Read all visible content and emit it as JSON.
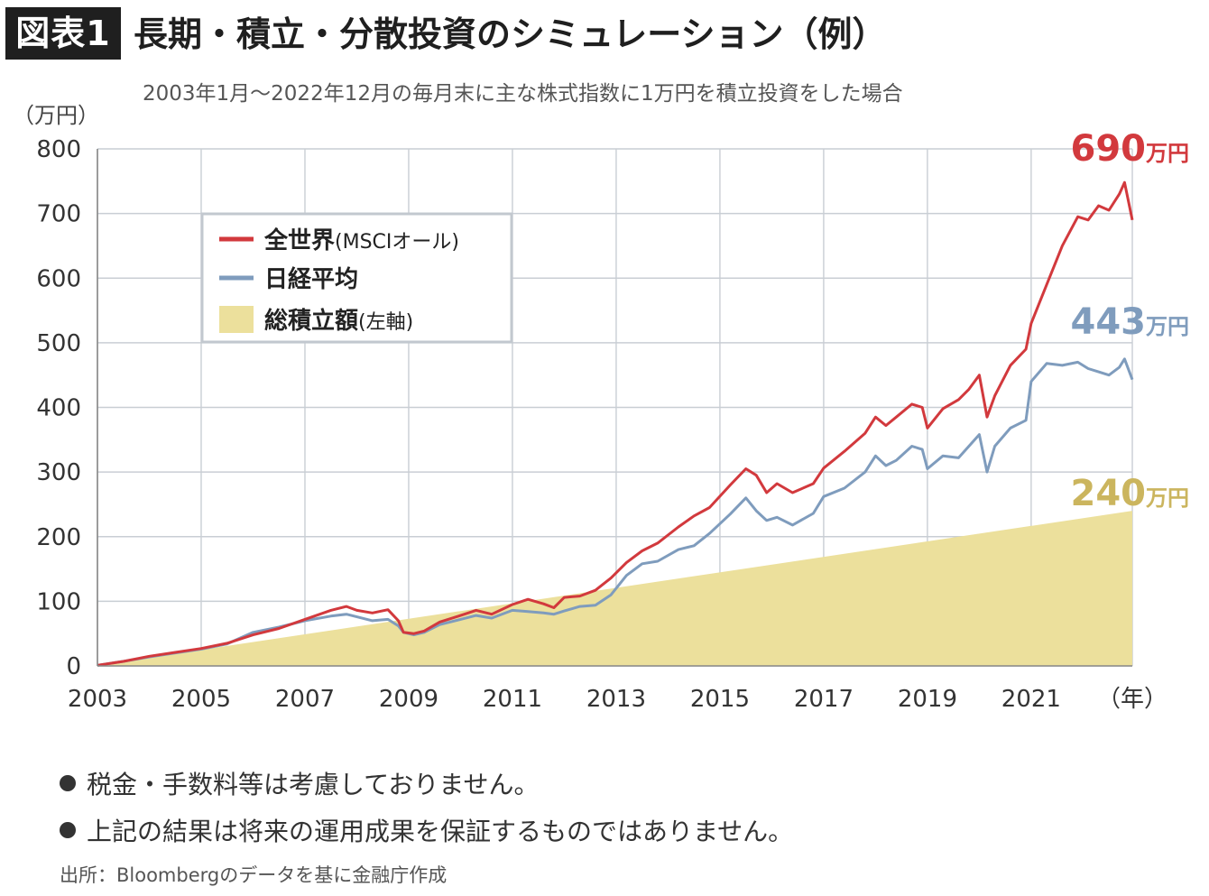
{
  "header": {
    "badge": "図表1",
    "title": "長期・積立・分散投資のシミュレーション（例）",
    "subtitle": "2003年1月〜2022年12月の毎月末に主な株式指数に1万円を積立投資をした場合"
  },
  "colors": {
    "world": "#d2393d",
    "nikkei": "#7f9cbd",
    "total": "#ece09c",
    "total_label": "#cbb55e",
    "grid": "#c9ced4",
    "axis_text": "#333333"
  },
  "chart_data": {
    "type": "line",
    "ylabel": "（万円）",
    "xlabel": "（年）",
    "ylim": [
      0,
      800
    ],
    "yticks": [
      0,
      100,
      200,
      300,
      400,
      500,
      600,
      700,
      800
    ],
    "xlim": [
      2003.0,
      2022.95
    ],
    "xticks": [
      "2003",
      "2005",
      "2007",
      "2009",
      "2011",
      "2013",
      "2015",
      "2017",
      "2019",
      "2021"
    ],
    "grid": true,
    "legend_position": "top-left",
    "series": [
      {
        "key": "world",
        "name": "全世界",
        "name_suffix": "(MSCIオール)",
        "style": "line",
        "end_label": "690",
        "end_unit": "万円",
        "points": [
          [
            2003.0,
            1
          ],
          [
            2003.5,
            7
          ],
          [
            2004.0,
            15
          ],
          [
            2004.5,
            21
          ],
          [
            2005.0,
            27
          ],
          [
            2005.5,
            35
          ],
          [
            2006.0,
            48
          ],
          [
            2006.5,
            58
          ],
          [
            2007.0,
            72
          ],
          [
            2007.5,
            86
          ],
          [
            2007.8,
            92
          ],
          [
            2008.0,
            86
          ],
          [
            2008.3,
            82
          ],
          [
            2008.6,
            87
          ],
          [
            2008.8,
            70
          ],
          [
            2008.9,
            52
          ],
          [
            2009.1,
            50
          ],
          [
            2009.3,
            54
          ],
          [
            2009.6,
            68
          ],
          [
            2010.0,
            78
          ],
          [
            2010.3,
            86
          ],
          [
            2010.6,
            80
          ],
          [
            2011.0,
            95
          ],
          [
            2011.3,
            103
          ],
          [
            2011.6,
            96
          ],
          [
            2011.8,
            90
          ],
          [
            2012.0,
            106
          ],
          [
            2012.3,
            108
          ],
          [
            2012.6,
            117
          ],
          [
            2012.9,
            136
          ],
          [
            2013.2,
            160
          ],
          [
            2013.5,
            178
          ],
          [
            2013.8,
            190
          ],
          [
            2014.2,
            215
          ],
          [
            2014.5,
            232
          ],
          [
            2014.8,
            245
          ],
          [
            2015.2,
            280
          ],
          [
            2015.5,
            305
          ],
          [
            2015.7,
            295
          ],
          [
            2015.9,
            268
          ],
          [
            2016.1,
            282
          ],
          [
            2016.4,
            268
          ],
          [
            2016.8,
            282
          ],
          [
            2017.0,
            306
          ],
          [
            2017.4,
            332
          ],
          [
            2017.8,
            360
          ],
          [
            2018.0,
            385
          ],
          [
            2018.2,
            372
          ],
          [
            2018.4,
            385
          ],
          [
            2018.7,
            405
          ],
          [
            2018.9,
            400
          ],
          [
            2019.0,
            368
          ],
          [
            2019.3,
            398
          ],
          [
            2019.6,
            412
          ],
          [
            2019.8,
            428
          ],
          [
            2020.0,
            450
          ],
          [
            2020.15,
            385
          ],
          [
            2020.3,
            418
          ],
          [
            2020.6,
            465
          ],
          [
            2020.9,
            490
          ],
          [
            2021.0,
            530
          ],
          [
            2021.3,
            590
          ],
          [
            2021.6,
            650
          ],
          [
            2021.9,
            695
          ],
          [
            2022.1,
            690
          ],
          [
            2022.3,
            712
          ],
          [
            2022.5,
            705
          ],
          [
            2022.7,
            730
          ],
          [
            2022.8,
            748
          ],
          [
            2022.95,
            690
          ]
        ]
      },
      {
        "key": "nikkei",
        "name": "日経平均",
        "style": "line",
        "end_label": "443",
        "end_unit": "万円",
        "points": [
          [
            2003.0,
            1
          ],
          [
            2003.5,
            7
          ],
          [
            2004.0,
            14
          ],
          [
            2004.5,
            20
          ],
          [
            2005.0,
            26
          ],
          [
            2005.5,
            34
          ],
          [
            2006.0,
            52
          ],
          [
            2006.5,
            60
          ],
          [
            2007.0,
            70
          ],
          [
            2007.5,
            77
          ],
          [
            2007.8,
            80
          ],
          [
            2008.0,
            76
          ],
          [
            2008.3,
            70
          ],
          [
            2008.6,
            72
          ],
          [
            2008.8,
            62
          ],
          [
            2008.9,
            52
          ],
          [
            2009.1,
            48
          ],
          [
            2009.3,
            52
          ],
          [
            2009.6,
            64
          ],
          [
            2010.0,
            72
          ],
          [
            2010.3,
            78
          ],
          [
            2010.6,
            74
          ],
          [
            2011.0,
            86
          ],
          [
            2011.3,
            84
          ],
          [
            2011.6,
            82
          ],
          [
            2011.8,
            80
          ],
          [
            2012.0,
            85
          ],
          [
            2012.3,
            92
          ],
          [
            2012.6,
            94
          ],
          [
            2012.9,
            110
          ],
          [
            2013.2,
            140
          ],
          [
            2013.5,
            158
          ],
          [
            2013.8,
            162
          ],
          [
            2014.2,
            180
          ],
          [
            2014.5,
            186
          ],
          [
            2014.8,
            205
          ],
          [
            2015.2,
            235
          ],
          [
            2015.5,
            260
          ],
          [
            2015.7,
            240
          ],
          [
            2015.9,
            225
          ],
          [
            2016.1,
            230
          ],
          [
            2016.4,
            218
          ],
          [
            2016.8,
            236
          ],
          [
            2017.0,
            262
          ],
          [
            2017.4,
            275
          ],
          [
            2017.8,
            300
          ],
          [
            2018.0,
            325
          ],
          [
            2018.2,
            310
          ],
          [
            2018.4,
            318
          ],
          [
            2018.7,
            340
          ],
          [
            2018.9,
            335
          ],
          [
            2019.0,
            305
          ],
          [
            2019.3,
            325
          ],
          [
            2019.6,
            322
          ],
          [
            2019.8,
            340
          ],
          [
            2020.0,
            358
          ],
          [
            2020.15,
            300
          ],
          [
            2020.3,
            340
          ],
          [
            2020.6,
            368
          ],
          [
            2020.9,
            380
          ],
          [
            2021.0,
            440
          ],
          [
            2021.3,
            468
          ],
          [
            2021.6,
            465
          ],
          [
            2021.9,
            470
          ],
          [
            2022.1,
            460
          ],
          [
            2022.3,
            455
          ],
          [
            2022.5,
            450
          ],
          [
            2022.7,
            462
          ],
          [
            2022.8,
            475
          ],
          [
            2022.95,
            443
          ]
        ]
      },
      {
        "key": "total",
        "name": "総積立額",
        "name_suffix": "(左軸)",
        "style": "area",
        "end_label": "240",
        "end_unit": "万円",
        "points": [
          [
            2003.0,
            1
          ],
          [
            2022.95,
            240
          ]
        ]
      }
    ]
  },
  "notes": [
    "税金・手数料等は考慮しておりません。",
    "上記の結果は将来の運用成果を保証するものではありません。"
  ],
  "source": "出所：Bloombergのデータを基に金融庁作成"
}
